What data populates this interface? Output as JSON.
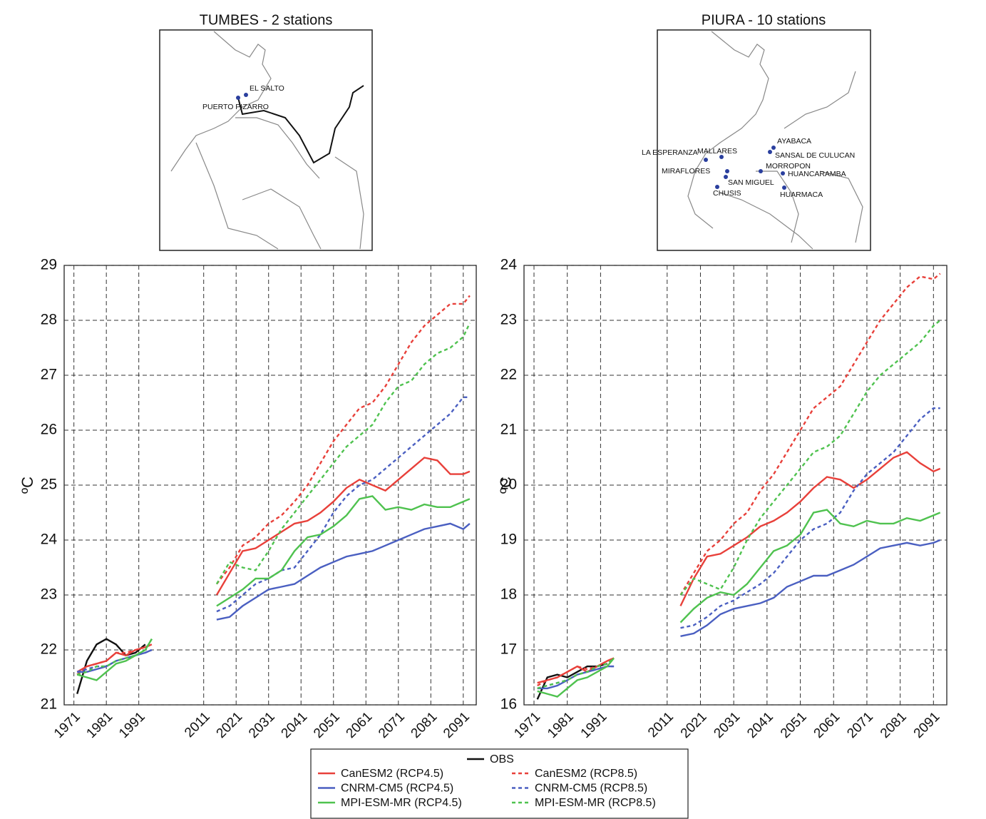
{
  "chart_data": [
    {
      "type": "line",
      "title": "TUMBES - 2 stations",
      "ylabel": "ºC",
      "x": [
        1972,
        1975,
        1978,
        1981,
        1984,
        1987,
        1990,
        1993,
        1995,
        2005,
        2015,
        2019,
        2023,
        2027,
        2031,
        2035,
        2039,
        2043,
        2047,
        2051,
        2055,
        2059,
        2063,
        2067,
        2071,
        2075,
        2079,
        2083,
        2087,
        2091,
        2093
      ],
      "xlim": [
        1968,
        2095
      ],
      "xticks": [
        1971,
        1981,
        1991,
        2011,
        2021,
        2031,
        2041,
        2051,
        2061,
        2071,
        2081,
        2091
      ],
      "ylim": [
        21,
        29
      ],
      "yticks": [
        21,
        22,
        23,
        24,
        25,
        26,
        27,
        28,
        29
      ],
      "grid": true,
      "series": [
        {
          "name": "OBS",
          "color": "#111111",
          "dashed": false,
          "values": [
            21.2,
            21.8,
            22.1,
            22.2,
            22.1,
            21.9,
            21.95,
            22.1,
            null,
            null,
            null,
            null,
            null,
            null,
            null,
            null,
            null,
            null,
            null,
            null,
            null,
            null,
            null,
            null,
            null,
            null,
            null,
            null,
            null,
            null,
            null
          ]
        },
        {
          "name": "CanESM2 (RCP4.5)",
          "color": "#e8403a",
          "dashed": false,
          "values": [
            21.6,
            21.7,
            21.75,
            21.8,
            21.95,
            21.9,
            22.0,
            22.05,
            22.1,
            null,
            23.0,
            23.4,
            23.8,
            23.85,
            24.0,
            24.15,
            24.3,
            24.35,
            24.5,
            24.7,
            24.95,
            25.1,
            25.0,
            24.9,
            25.1,
            25.3,
            25.5,
            25.45,
            25.2,
            25.2,
            25.25
          ]
        },
        {
          "name": "CanESM2 (RCP8.5)",
          "color": "#e8403a",
          "dashed": true,
          "values": [
            21.55,
            21.7,
            21.75,
            21.8,
            21.95,
            21.95,
            22.0,
            22.05,
            22.1,
            null,
            23.2,
            23.5,
            23.9,
            24.05,
            24.3,
            24.45,
            24.7,
            25.0,
            25.4,
            25.8,
            26.1,
            26.4,
            26.5,
            26.8,
            27.2,
            27.6,
            27.9,
            28.1,
            28.3,
            28.3,
            28.45
          ]
        },
        {
          "name": "CNRM-CM5 (RCP4.5)",
          "color": "#4a5fc1",
          "dashed": false,
          "values": [
            21.6,
            21.6,
            21.65,
            21.7,
            21.8,
            21.85,
            21.9,
            21.95,
            22.0,
            null,
            22.55,
            22.6,
            22.8,
            22.95,
            23.1,
            23.15,
            23.2,
            23.35,
            23.5,
            23.6,
            23.7,
            23.75,
            23.8,
            23.9,
            24.0,
            24.1,
            24.2,
            24.25,
            24.3,
            24.2,
            24.3
          ]
        },
        {
          "name": "CNRM-CM5 (RCP8.5)",
          "color": "#4a5fc1",
          "dashed": true,
          "values": [
            21.6,
            21.65,
            21.7,
            21.7,
            21.8,
            21.85,
            21.9,
            21.95,
            22.0,
            null,
            22.7,
            22.8,
            23.0,
            23.2,
            23.3,
            23.45,
            23.5,
            23.8,
            24.1,
            24.5,
            24.8,
            25.0,
            25.1,
            25.3,
            25.5,
            25.7,
            25.9,
            26.1,
            26.3,
            26.6,
            26.6
          ]
        },
        {
          "name": "MPI-ESM-MR (RCP4.5)",
          "color": "#4fc24f",
          "dashed": false,
          "values": [
            21.55,
            21.5,
            21.45,
            21.6,
            21.75,
            21.8,
            21.9,
            22.0,
            22.2,
            null,
            22.8,
            22.95,
            23.1,
            23.3,
            23.3,
            23.45,
            23.8,
            24.05,
            24.1,
            24.25,
            24.45,
            24.75,
            24.8,
            24.55,
            24.6,
            24.55,
            24.65,
            24.6,
            24.6,
            24.7,
            24.75
          ]
        },
        {
          "name": "MPI-ESM-MR (RCP8.5)",
          "color": "#4fc24f",
          "dashed": true,
          "values": [
            21.55,
            21.6,
            21.7,
            21.7,
            21.8,
            21.85,
            21.9,
            22.0,
            22.2,
            null,
            23.2,
            23.6,
            23.5,
            23.45,
            23.8,
            24.2,
            24.5,
            24.8,
            25.1,
            25.4,
            25.7,
            25.9,
            26.1,
            26.5,
            26.8,
            26.9,
            27.2,
            27.4,
            27.5,
            27.7,
            27.95
          ]
        }
      ]
    },
    {
      "type": "line",
      "title": "PIURA - 10 stations",
      "ylabel": "ºC",
      "x": [
        1972,
        1975,
        1978,
        1981,
        1984,
        1987,
        1990,
        1993,
        1995,
        2005,
        2015,
        2019,
        2023,
        2027,
        2031,
        2035,
        2039,
        2043,
        2047,
        2051,
        2055,
        2059,
        2063,
        2067,
        2071,
        2075,
        2079,
        2083,
        2087,
        2091,
        2093
      ],
      "xlim": [
        1968,
        2095
      ],
      "xticks": [
        1971,
        1981,
        1991,
        2011,
        2021,
        2031,
        2041,
        2051,
        2061,
        2071,
        2081,
        2091
      ],
      "ylim": [
        16,
        24
      ],
      "yticks": [
        16,
        17,
        18,
        19,
        20,
        21,
        22,
        23,
        24
      ],
      "grid": true,
      "series": [
        {
          "name": "OBS",
          "color": "#111111",
          "dashed": false,
          "values": [
            16.1,
            16.5,
            16.55,
            16.5,
            16.6,
            16.7,
            16.7,
            16.75,
            null,
            null,
            null,
            null,
            null,
            null,
            null,
            null,
            null,
            null,
            null,
            null,
            null,
            null,
            null,
            null,
            null,
            null,
            null,
            null,
            null,
            null,
            null
          ]
        },
        {
          "name": "CanESM2 (RCP4.5)",
          "color": "#e8403a",
          "dashed": false,
          "values": [
            16.4,
            16.45,
            16.5,
            16.6,
            16.7,
            16.6,
            16.7,
            16.8,
            16.85,
            null,
            17.8,
            18.3,
            18.7,
            18.75,
            18.9,
            19.05,
            19.25,
            19.35,
            19.5,
            19.7,
            19.95,
            20.15,
            20.1,
            19.95,
            20.1,
            20.3,
            20.5,
            20.6,
            20.4,
            20.25,
            20.3
          ]
        },
        {
          "name": "CanESM2 (RCP8.5)",
          "color": "#e8403a",
          "dashed": true,
          "values": [
            16.35,
            16.45,
            16.5,
            16.6,
            16.7,
            16.65,
            16.7,
            16.8,
            16.85,
            null,
            18.0,
            18.4,
            18.8,
            19.0,
            19.3,
            19.5,
            19.9,
            20.2,
            20.6,
            21.0,
            21.4,
            21.6,
            21.8,
            22.2,
            22.6,
            23.0,
            23.3,
            23.6,
            23.8,
            23.75,
            23.85
          ]
        },
        {
          "name": "CNRM-CM5 (RCP4.5)",
          "color": "#4a5fc1",
          "dashed": false,
          "values": [
            16.3,
            16.3,
            16.35,
            16.45,
            16.55,
            16.6,
            16.65,
            16.7,
            16.7,
            null,
            17.25,
            17.3,
            17.45,
            17.65,
            17.75,
            17.8,
            17.85,
            17.95,
            18.15,
            18.25,
            18.35,
            18.35,
            18.45,
            18.55,
            18.7,
            18.85,
            18.9,
            18.95,
            18.9,
            18.95,
            19.0
          ]
        },
        {
          "name": "CNRM-CM5 (RCP8.5)",
          "color": "#4a5fc1",
          "dashed": true,
          "values": [
            16.3,
            16.35,
            16.4,
            16.45,
            16.55,
            16.6,
            16.65,
            16.7,
            16.7,
            null,
            17.4,
            17.45,
            17.6,
            17.8,
            17.9,
            18.05,
            18.2,
            18.4,
            18.7,
            19.0,
            19.2,
            19.3,
            19.5,
            19.9,
            20.2,
            20.4,
            20.6,
            20.9,
            21.2,
            21.4,
            21.4
          ]
        },
        {
          "name": "MPI-ESM-MR (RCP4.5)",
          "color": "#4fc24f",
          "dashed": false,
          "values": [
            16.25,
            16.2,
            16.15,
            16.3,
            16.45,
            16.5,
            16.6,
            16.7,
            16.85,
            null,
            17.5,
            17.75,
            17.95,
            18.05,
            18.0,
            18.2,
            18.5,
            18.8,
            18.9,
            19.1,
            19.5,
            19.55,
            19.3,
            19.25,
            19.35,
            19.3,
            19.3,
            19.4,
            19.35,
            19.45,
            19.5
          ]
        },
        {
          "name": "MPI-ESM-MR (RCP8.5)",
          "color": "#4fc24f",
          "dashed": true,
          "values": [
            16.3,
            16.35,
            16.4,
            16.45,
            16.55,
            16.6,
            16.7,
            16.75,
            16.85,
            null,
            18.0,
            18.3,
            18.2,
            18.1,
            18.5,
            19.0,
            19.4,
            19.7,
            20.0,
            20.3,
            20.6,
            20.7,
            20.9,
            21.3,
            21.7,
            22.0,
            22.2,
            22.4,
            22.6,
            22.9,
            23.0
          ]
        }
      ]
    }
  ],
  "maps": [
    {
      "stations": [
        "EL SALTO",
        "PUERTO PIZARRO"
      ]
    },
    {
      "stations": [
        "AYABACA",
        "LA ESPERANZA",
        "MALLARES",
        "SANSAL DE CULUCAN",
        "MIRAFLORES",
        "MORROPON",
        "HUANCARAMBA",
        "SAN MIGUEL",
        "CHUSIS",
        "HUARMACA"
      ]
    }
  ]
}
